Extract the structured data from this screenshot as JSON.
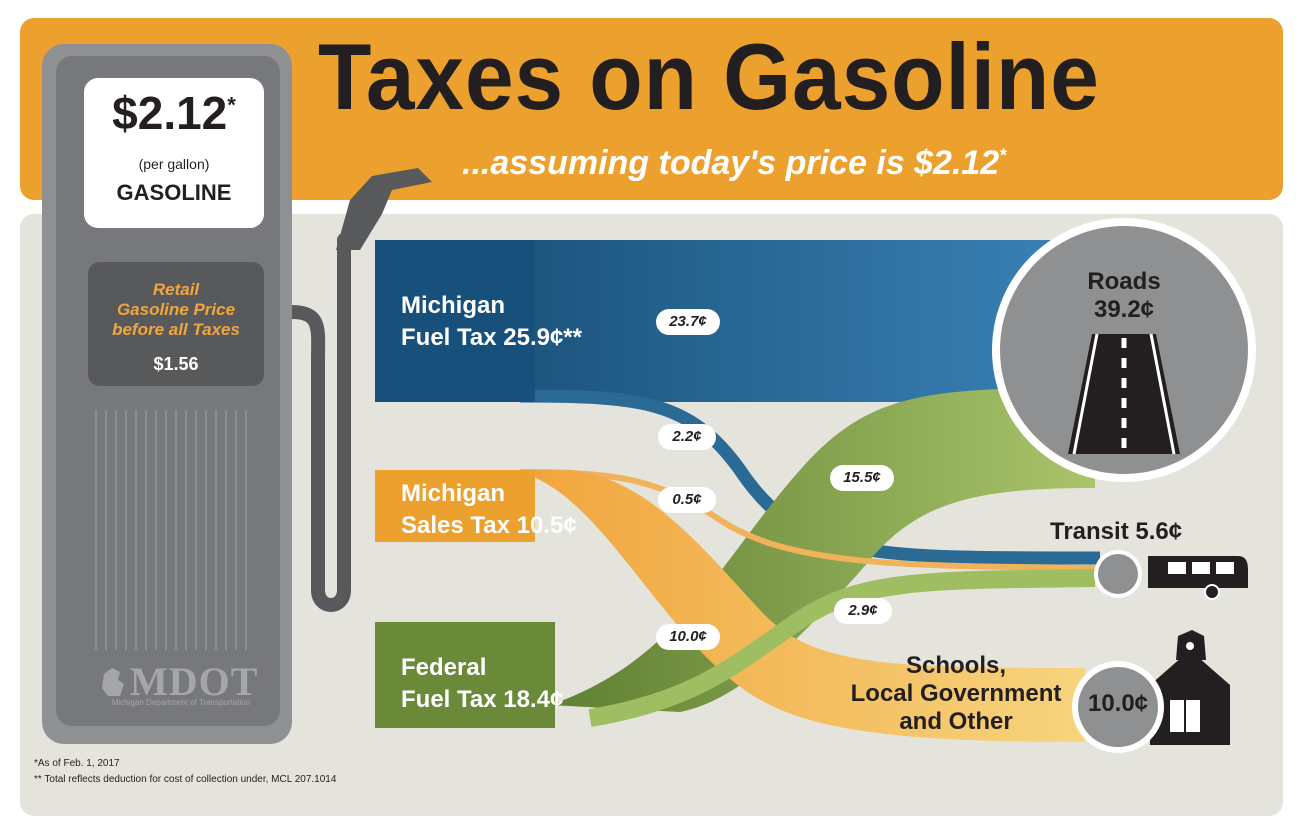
{
  "title": "Taxes on Gasoline",
  "subtitle": {
    "text": "...assuming today's price is $2.12",
    "mark": "*"
  },
  "pump": {
    "price": "$2.12",
    "price_mark": "*",
    "unit": "(per gallon)",
    "product": "GASOLINE",
    "retail_label": "Retail\nGasoline Price\nbefore all Taxes",
    "retail_value": "$1.56",
    "logo": "MDOT",
    "logo_sub": "Michigan Department of Transportation"
  },
  "sources": [
    {
      "label": "Michigan\nFuel Tax 25.9¢**",
      "color": "#2a6a95"
    },
    {
      "label": "Michigan\nSales Tax 10.5¢",
      "color": "#eca12f"
    },
    {
      "label": "Federal\nFuel Tax 18.4¢",
      "color": "#6e8f3e"
    }
  ],
  "destinations": [
    {
      "label": "Roads\n39.2¢",
      "icon": "road-icon"
    },
    {
      "label": "Transit 5.6¢",
      "icon": "bus-icon"
    },
    {
      "label": "Schools,\nLocal Government\nand Other",
      "value": "10.0¢",
      "icon": "schoolhouse-icon"
    }
  ],
  "flows": [
    {
      "label": "23.7¢"
    },
    {
      "label": "2.2¢"
    },
    {
      "label": "0.5¢"
    },
    {
      "label": "15.5¢"
    },
    {
      "label": "2.9¢"
    },
    {
      "label": "10.0¢"
    }
  ],
  "footnotes": [
    "*As of Feb. 1, 2017",
    "** Total reflects deduction for cost of collection under, MCL 207.1014"
  ]
}
